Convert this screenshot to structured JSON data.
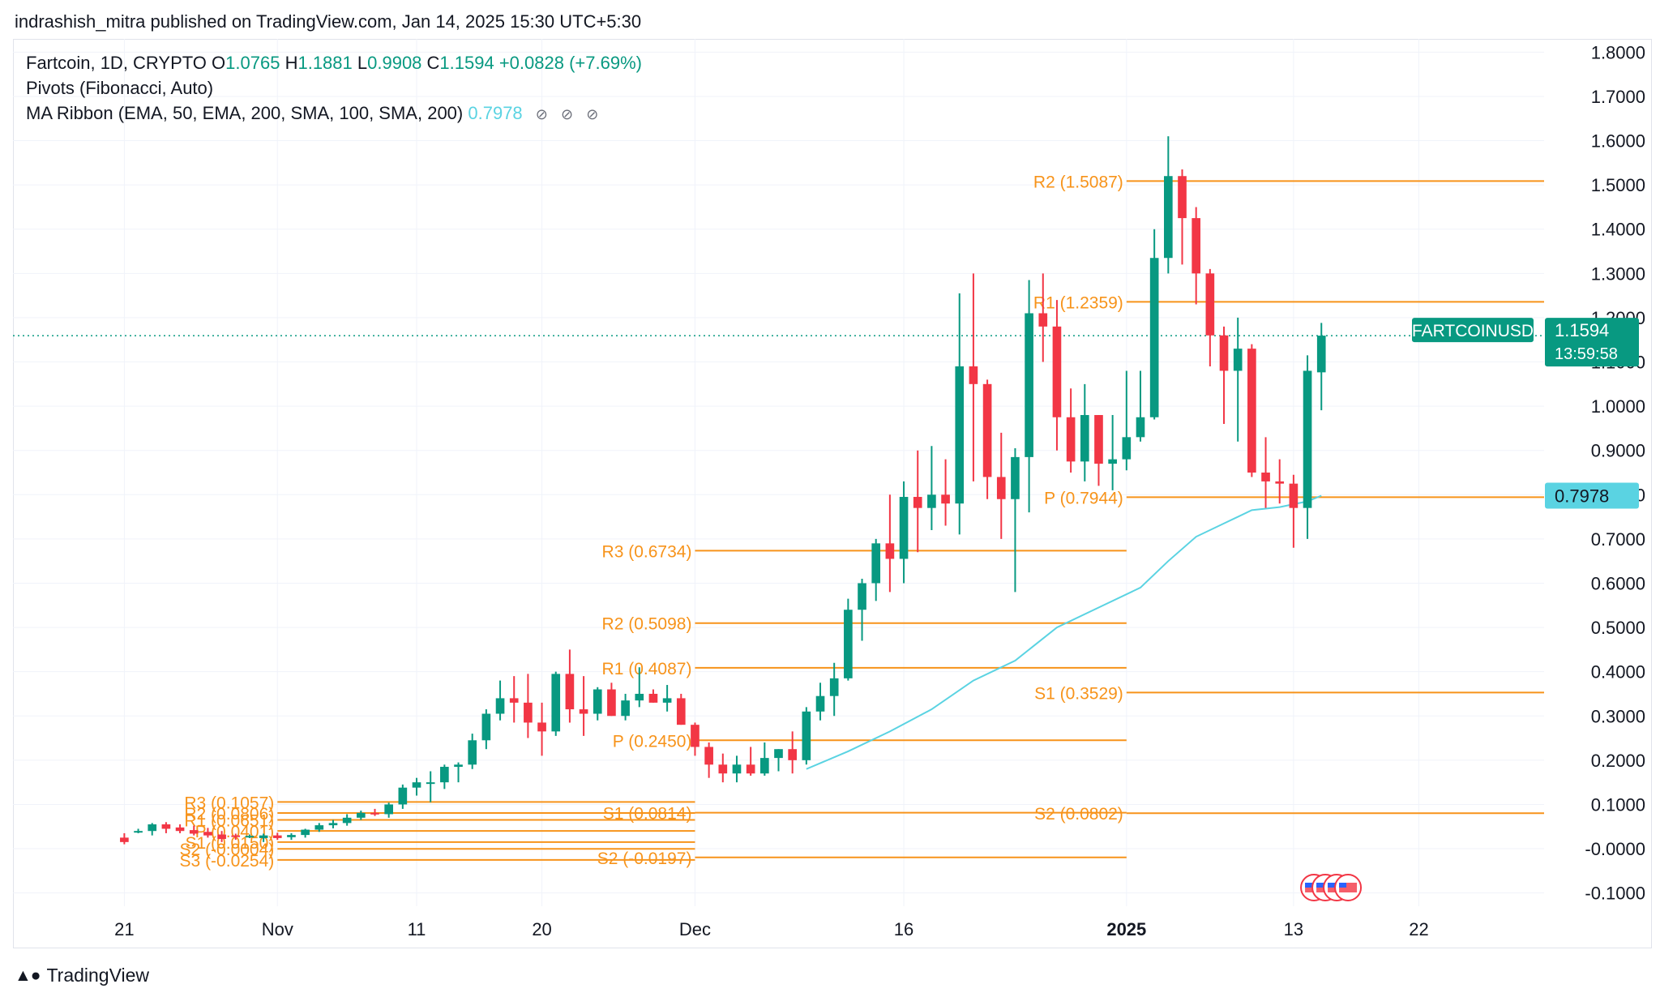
{
  "header": {
    "published_line": "indrashish_mitra published on TradingView.com, Jan 14, 2025 15:30 UTC+5:30"
  },
  "legend": {
    "symbol_line": "Fartcoin, 1D, CRYPTO",
    "ohlc": [
      {
        "key": "O",
        "value": "1.0765"
      },
      {
        "key": "H",
        "value": "1.1881"
      },
      {
        "key": "L",
        "value": "0.9908"
      },
      {
        "key": "C",
        "value": "1.1594"
      }
    ],
    "change": "+0.0828 (+7.69%)",
    "pivots_label": "Pivots (Fibonacci, Auto)",
    "ma_label": "MA Ribbon (EMA, 50, EMA, 200, SMA, 100, SMA, 200)",
    "ma_value": "0.7978",
    "ma_icons": [
      "eye-off-icon",
      "eye-off-icon",
      "eye-off-icon"
    ]
  },
  "footer": {
    "brand": "TradingView",
    "brand_icon": "tradingview-logo-icon"
  },
  "colors": {
    "up": "#089981",
    "down": "#f23645",
    "pivot": "#f7931a",
    "ma": "#5ad3e2",
    "grid": "#f0f3fa",
    "price_label_bg": "#089981",
    "ma_label_bg": "#5ad3e2"
  },
  "chart_data": {
    "type": "candlestick",
    "symbol": "FARTCOINUSD",
    "timeframe": "1D",
    "y_axis": {
      "ticks": [
        "1.8000",
        "1.7000",
        "1.6000",
        "1.5000",
        "1.4000",
        "1.3000",
        "1.2000",
        "1.1000",
        "1.0000",
        "0.9000",
        "0.8000",
        "0.7000",
        "0.6000",
        "0.5000",
        "0.4000",
        "0.3000",
        "0.2000",
        "0.1000",
        "-0.0000",
        "-0.1000"
      ],
      "range": [
        -0.13,
        1.83
      ]
    },
    "x_axis": {
      "ticks": [
        {
          "label": "21",
          "date": "2024-10-21"
        },
        {
          "label": "Nov",
          "date": "2024-11-01"
        },
        {
          "label": "11",
          "date": "2024-11-11"
        },
        {
          "label": "20",
          "date": "2024-11-20"
        },
        {
          "label": "Dec",
          "date": "2024-12-01"
        },
        {
          "label": "16",
          "date": "2024-12-16"
        },
        {
          "label": "2025",
          "date": "2025-01-01",
          "bold": true
        },
        {
          "label": "13",
          "date": "2025-01-13"
        },
        {
          "label": "22",
          "date": "2025-01-22"
        }
      ],
      "range": [
        "2024-10-13",
        "2025-01-31"
      ]
    },
    "candles": [
      [
        "2024-10-21",
        0.025,
        0.035,
        0.01,
        0.015
      ],
      [
        "2024-10-22",
        0.04,
        0.045,
        0.035,
        0.04
      ],
      [
        "2024-10-23",
        0.04,
        0.058,
        0.03,
        0.055
      ],
      [
        "2024-10-24",
        0.055,
        0.06,
        0.035,
        0.045
      ],
      [
        "2024-10-25",
        0.048,
        0.055,
        0.035,
        0.04
      ],
      [
        "2024-10-26",
        0.042,
        0.052,
        0.03,
        0.034
      ],
      [
        "2024-10-27",
        0.038,
        0.047,
        0.025,
        0.03
      ],
      [
        "2024-10-28",
        0.032,
        0.04,
        0.015,
        0.022
      ],
      [
        "2024-10-29",
        0.03,
        0.034,
        0.02,
        0.028
      ],
      [
        "2024-10-30",
        0.028,
        0.032,
        0.024,
        0.029
      ],
      [
        "2024-10-31",
        0.024,
        0.034,
        0.015,
        0.03
      ],
      [
        "2024-11-01",
        0.03,
        0.036,
        0.02,
        0.024
      ],
      [
        "2024-11-02",
        0.026,
        0.035,
        0.02,
        0.031
      ],
      [
        "2024-11-03",
        0.031,
        0.045,
        0.025,
        0.043
      ],
      [
        "2024-11-04",
        0.043,
        0.058,
        0.038,
        0.053
      ],
      [
        "2024-11-05",
        0.053,
        0.065,
        0.046,
        0.058
      ],
      [
        "2024-11-06",
        0.058,
        0.078,
        0.052,
        0.07
      ],
      [
        "2024-11-07",
        0.07,
        0.086,
        0.065,
        0.081
      ],
      [
        "2024-11-08",
        0.081,
        0.09,
        0.074,
        0.078
      ],
      [
        "2024-11-09",
        0.078,
        0.104,
        0.07,
        0.1
      ],
      [
        "2024-11-10",
        0.1,
        0.145,
        0.09,
        0.138
      ],
      [
        "2024-11-11",
        0.138,
        0.16,
        0.12,
        0.15
      ],
      [
        "2024-11-12",
        0.15,
        0.175,
        0.105,
        0.15
      ],
      [
        "2024-11-13",
        0.15,
        0.19,
        0.135,
        0.185
      ],
      [
        "2024-11-14",
        0.185,
        0.195,
        0.15,
        0.19
      ],
      [
        "2024-11-15",
        0.19,
        0.26,
        0.18,
        0.245
      ],
      [
        "2024-11-16",
        0.245,
        0.315,
        0.225,
        0.305
      ],
      [
        "2024-11-17",
        0.305,
        0.38,
        0.29,
        0.34
      ],
      [
        "2024-11-18",
        0.34,
        0.39,
        0.285,
        0.33
      ],
      [
        "2024-11-19",
        0.33,
        0.395,
        0.25,
        0.285
      ],
      [
        "2024-11-20",
        0.285,
        0.33,
        0.21,
        0.265
      ],
      [
        "2024-11-21",
        0.265,
        0.4,
        0.255,
        0.395
      ],
      [
        "2024-11-22",
        0.395,
        0.45,
        0.285,
        0.315
      ],
      [
        "2024-11-23",
        0.315,
        0.39,
        0.255,
        0.305
      ],
      [
        "2024-11-24",
        0.305,
        0.365,
        0.29,
        0.36
      ],
      [
        "2024-11-25",
        0.36,
        0.375,
        0.3,
        0.3
      ],
      [
        "2024-11-26",
        0.3,
        0.35,
        0.29,
        0.335
      ],
      [
        "2024-11-27",
        0.335,
        0.41,
        0.32,
        0.35
      ],
      [
        "2024-11-28",
        0.35,
        0.36,
        0.33,
        0.33
      ],
      [
        "2024-11-29",
        0.33,
        0.37,
        0.31,
        0.34
      ],
      [
        "2024-11-30",
        0.34,
        0.35,
        0.28,
        0.28
      ],
      [
        "2024-12-01",
        0.28,
        0.285,
        0.21,
        0.23
      ],
      [
        "2024-12-02",
        0.23,
        0.24,
        0.16,
        0.19
      ],
      [
        "2024-12-03",
        0.19,
        0.215,
        0.15,
        0.17
      ],
      [
        "2024-12-04",
        0.17,
        0.21,
        0.15,
        0.19
      ],
      [
        "2024-12-05",
        0.19,
        0.23,
        0.165,
        0.17
      ],
      [
        "2024-12-06",
        0.17,
        0.24,
        0.165,
        0.205
      ],
      [
        "2024-12-07",
        0.205,
        0.225,
        0.175,
        0.225
      ],
      [
        "2024-12-08",
        0.225,
        0.265,
        0.17,
        0.2
      ],
      [
        "2024-12-09",
        0.2,
        0.32,
        0.19,
        0.31
      ],
      [
        "2024-12-10",
        0.31,
        0.375,
        0.29,
        0.345
      ],
      [
        "2024-12-11",
        0.345,
        0.42,
        0.3,
        0.385
      ],
      [
        "2024-12-12",
        0.385,
        0.565,
        0.38,
        0.54
      ],
      [
        "2024-12-13",
        0.54,
        0.61,
        0.47,
        0.6
      ],
      [
        "2024-12-14",
        0.6,
        0.7,
        0.56,
        0.69
      ],
      [
        "2024-12-15",
        0.69,
        0.8,
        0.58,
        0.655
      ],
      [
        "2024-12-16",
        0.655,
        0.83,
        0.6,
        0.795
      ],
      [
        "2024-12-17",
        0.795,
        0.9,
        0.67,
        0.77
      ],
      [
        "2024-12-18",
        0.77,
        0.91,
        0.72,
        0.8
      ],
      [
        "2024-12-19",
        0.8,
        0.88,
        0.73,
        0.78
      ],
      [
        "2024-12-20",
        0.78,
        1.255,
        0.71,
        1.09
      ],
      [
        "2024-12-21",
        1.09,
        1.3,
        0.83,
        1.05
      ],
      [
        "2024-12-22",
        1.05,
        1.06,
        0.79,
        0.84
      ],
      [
        "2024-12-23",
        0.84,
        0.94,
        0.7,
        0.79
      ],
      [
        "2024-12-24",
        0.79,
        0.905,
        0.58,
        0.885
      ],
      [
        "2024-12-25",
        0.885,
        1.285,
        0.76,
        1.21
      ],
      [
        "2024-12-26",
        1.21,
        1.3,
        1.1,
        1.18
      ],
      [
        "2024-12-27",
        1.18,
        1.24,
        0.9,
        0.975
      ],
      [
        "2024-12-28",
        0.975,
        1.04,
        0.85,
        0.875
      ],
      [
        "2024-12-29",
        0.875,
        1.05,
        0.83,
        0.98
      ],
      [
        "2024-12-30",
        0.98,
        0.98,
        0.82,
        0.87
      ],
      [
        "2024-12-31",
        0.87,
        0.98,
        0.81,
        0.88
      ],
      [
        "2025-01-01",
        0.88,
        1.08,
        0.855,
        0.93
      ],
      [
        "2025-01-02",
        0.93,
        1.08,
        0.92,
        0.975
      ],
      [
        "2025-01-03",
        0.975,
        1.4,
        0.97,
        1.335
      ],
      [
        "2025-01-04",
        1.335,
        1.61,
        1.3,
        1.52
      ],
      [
        "2025-01-05",
        1.52,
        1.535,
        1.32,
        1.425
      ],
      [
        "2025-01-06",
        1.425,
        1.45,
        1.23,
        1.3
      ],
      [
        "2025-01-07",
        1.3,
        1.31,
        1.09,
        1.16
      ],
      [
        "2025-01-08",
        1.16,
        1.18,
        0.96,
        1.08
      ],
      [
        "2025-01-09",
        1.08,
        1.2,
        0.92,
        1.13
      ],
      [
        "2025-01-10",
        1.13,
        1.14,
        0.84,
        0.85
      ],
      [
        "2025-01-11",
        0.85,
        0.93,
        0.77,
        0.83
      ],
      [
        "2025-01-12",
        0.83,
        0.88,
        0.78,
        0.825
      ],
      [
        "2025-01-13",
        0.825,
        0.845,
        0.68,
        0.77
      ],
      [
        "2025-01-14",
        0.77,
        1.115,
        0.7,
        1.08
      ],
      [
        "2025-01-15",
        1.0765,
        1.1881,
        0.9908,
        1.1594
      ]
    ],
    "ma_line": {
      "name": "MA Ribbon",
      "points": [
        [
          "2024-12-09",
          0.18
        ],
        [
          "2024-12-12",
          0.22
        ],
        [
          "2024-12-15",
          0.265
        ],
        [
          "2024-12-18",
          0.315
        ],
        [
          "2024-12-21",
          0.38
        ],
        [
          "2024-12-24",
          0.425
        ],
        [
          "2024-12-27",
          0.5
        ],
        [
          "2024-12-30",
          0.545
        ],
        [
          "2025-01-02",
          0.59
        ],
        [
          "2025-01-04",
          0.65
        ],
        [
          "2025-01-06",
          0.705
        ],
        [
          "2025-01-08",
          0.735
        ],
        [
          "2025-01-10",
          0.765
        ],
        [
          "2025-01-12",
          0.772
        ],
        [
          "2025-01-14",
          0.785
        ],
        [
          "2025-01-15",
          0.7978
        ]
      ]
    },
    "pivot_sets": [
      {
        "start": "2024-11-01",
        "end": "2024-12-01",
        "levels": [
          {
            "label": "R3 (0.1057)",
            "value": 0.1057
          },
          {
            "label": "R2 (0.0806)",
            "value": 0.0806
          },
          {
            "label": "R1 (0.0651)",
            "value": 0.0651
          },
          {
            "label": "P (0.0401)",
            "value": 0.0401
          },
          {
            "label": "S1 (0.0150)",
            "value": 0.015
          },
          {
            "label": "S2 (-0.0004)",
            "value": -0.0004
          },
          {
            "label": "S3 (-0.0254)",
            "value": -0.0254
          }
        ]
      },
      {
        "start": "2024-12-01",
        "end": "2025-01-01",
        "levels": [
          {
            "label": "R3 (0.6734)",
            "value": 0.6734
          },
          {
            "label": "R2 (0.5098)",
            "value": 0.5098
          },
          {
            "label": "R1 (0.4087)",
            "value": 0.4087
          },
          {
            "label": "P (0.2450)",
            "value": 0.245
          },
          {
            "label": "S1 (0.0814)",
            "value": 0.0814
          },
          {
            "label": "S2 (-0.0197)",
            "value": -0.0197
          }
        ]
      },
      {
        "start": "2025-01-01",
        "end": "2025-01-31",
        "levels": [
          {
            "label": "R2 (1.5087)",
            "value": 1.5087
          },
          {
            "label": "R1 (1.2359)",
            "value": 1.2359
          },
          {
            "label": "P (0.7944)",
            "value": 0.7944
          },
          {
            "label": "S1 (0.3529)",
            "value": 0.3529
          },
          {
            "label": "S2 (0.0802)",
            "value": 0.0802
          }
        ]
      }
    ],
    "last_price": {
      "symbol": "FARTCOINUSD",
      "value": 1.1594,
      "label": "1.1594",
      "countdown": "13:59:58"
    },
    "ma_price": {
      "value": 0.7978,
      "label": "0.7978"
    },
    "event_markers": {
      "date": "2025-01-14",
      "count": 4,
      "icon": "us-flag-icon"
    }
  }
}
